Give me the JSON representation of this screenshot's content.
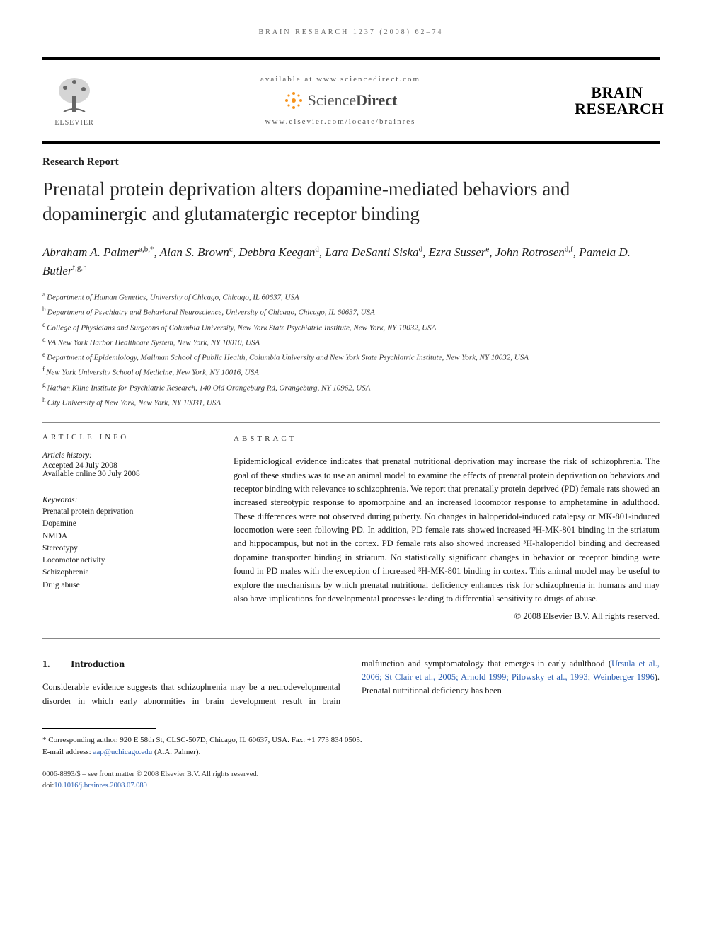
{
  "running_head": "BRAIN RESEARCH 1237 (2008) 62–74",
  "header": {
    "publisher_label": "ELSEVIER",
    "available_line": "available at www.sciencedirect.com",
    "sd_brand_light": "Science",
    "sd_brand_bold": "Direct",
    "journal_url": "www.elsevier.com/locate/brainres",
    "journal_logo_line1": "BRAIN",
    "journal_logo_line2": "RESEARCH"
  },
  "section_type": "Research Report",
  "title": "Prenatal protein deprivation alters dopamine-mediated behaviors and dopaminergic and glutamatergic receptor binding",
  "authors_html": "Abraham A. Palmer<sup>a,b,*</sup>, Alan S. Brown<sup>c</sup>, Debbra Keegan<sup>d</sup>, Lara DeSanti Siska<sup>d</sup>, Ezra Susser<sup>e</sup>, John Rotrosen<sup>d,f</sup>, Pamela D. Butler<sup>f,g,h</sup>",
  "affiliations": [
    {
      "sup": "a",
      "text": "Department of Human Genetics, University of Chicago, Chicago, IL 60637, USA"
    },
    {
      "sup": "b",
      "text": "Department of Psychiatry and Behavioral Neuroscience, University of Chicago, Chicago, IL 60637, USA"
    },
    {
      "sup": "c",
      "text": "College of Physicians and Surgeons of Columbia University, New York State Psychiatric Institute, New York, NY 10032, USA"
    },
    {
      "sup": "d",
      "text": "VA New York Harbor Healthcare System, New York, NY 10010, USA"
    },
    {
      "sup": "e",
      "text": "Department of Epidemiology, Mailman School of Public Health, Columbia University and New York State Psychiatric Institute, New York, NY 10032, USA"
    },
    {
      "sup": "f",
      "text": "New York University School of Medicine, New York, NY 10016, USA"
    },
    {
      "sup": "g",
      "text": "Nathan Kline Institute for Psychiatric Research, 140 Old Orangeburg Rd, Orangeburg, NY 10962, USA"
    },
    {
      "sup": "h",
      "text": "City University of New York, New York, NY 10031, USA"
    }
  ],
  "article_info": {
    "head": "ARTICLE INFO",
    "history_label": "Article history:",
    "accepted": "Accepted 24 July 2008",
    "online": "Available online 30 July 2008",
    "keywords_label": "Keywords:",
    "keywords": [
      "Prenatal protein deprivation",
      "Dopamine",
      "NMDA",
      "Stereotypy",
      "Locomotor activity",
      "Schizophrenia",
      "Drug abuse"
    ]
  },
  "abstract": {
    "head": "ABSTRACT",
    "text": "Epidemiological evidence indicates that prenatal nutritional deprivation may increase the risk of schizophrenia. The goal of these studies was to use an animal model to examine the effects of prenatal protein deprivation on behaviors and receptor binding with relevance to schizophrenia. We report that prenatally protein deprived (PD) female rats showed an increased stereotypic response to apomorphine and an increased locomotor response to amphetamine in adulthood. These differences were not observed during puberty. No changes in haloperidol-induced catalepsy or MK-801-induced locomotion were seen following PD. In addition, PD female rats showed increased ³H-MK-801 binding in the striatum and hippocampus, but not in the cortex. PD female rats also showed increased ³H-haloperidol binding and decreased dopamine transporter binding in striatum. No statistically significant changes in behavior or receptor binding were found in PD males with the exception of increased ³H-MK-801 binding in cortex. This animal model may be useful to explore the mechanisms by which prenatal nutritional deficiency enhances risk for schizophrenia in humans and may also have implications for developmental processes leading to differential sensitivity to drugs of abuse.",
    "copyright": "© 2008 Elsevier B.V. All rights reserved."
  },
  "intro": {
    "num": "1.",
    "heading": "Introduction",
    "para_left": "Considerable evidence suggests that schizophrenia may be a neurodevelopmental disorder in which early abnormities in",
    "para_right_pre": "brain development result in brain malfunction and symptomatology that emerges in early adulthood (",
    "cite": "Ursula et al., 2006; St Clair et al., 2005; Arnold 1999; Pilowsky et al., 1993; Weinberger 1996",
    "para_right_post": "). Prenatal nutritional deficiency has been"
  },
  "footnotes": {
    "corresponding": "* Corresponding author. 920 E 58th St, CLSC-507D, Chicago, IL 60637, USA. Fax: +1 773 834 0505.",
    "email_label": "E-mail address: ",
    "email": "aap@uchicago.edu",
    "email_suffix": " (A.A. Palmer)."
  },
  "footer": {
    "line1": "0006-8993/$ – see front matter © 2008 Elsevier B.V. All rights reserved.",
    "doi_label": "doi:",
    "doi": "10.1016/j.brainres.2008.07.089"
  },
  "colors": {
    "link": "#2a5db0",
    "sd_orange": "#f7941e",
    "text": "#1a1a1a",
    "muted": "#555555"
  }
}
